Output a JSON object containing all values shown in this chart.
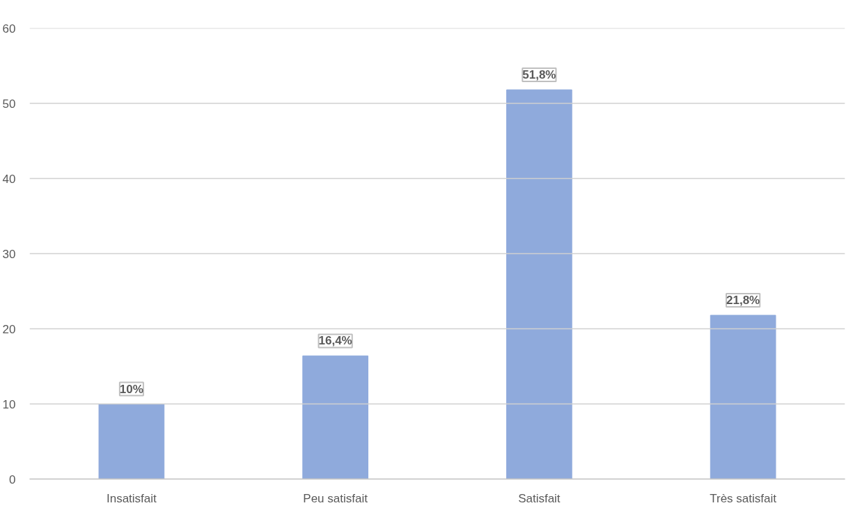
{
  "chart_data": {
    "type": "bar",
    "categories": [
      "Insatisfait",
      "Peu satisfait",
      "Satisfait",
      "Très satisfait"
    ],
    "values": [
      10,
      16.4,
      51.8,
      21.8
    ],
    "value_labels": [
      "10%",
      "16,4%",
      "51,8%",
      "21,8%"
    ],
    "color": "#8faadc",
    "ylim": [
      0,
      60
    ],
    "yticks": [
      0,
      10,
      20,
      30,
      40,
      50,
      60
    ],
    "grid": "y"
  }
}
